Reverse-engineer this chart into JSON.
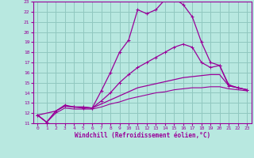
{
  "xlabel": "Windchill (Refroidissement éolien,°C)",
  "xlim": [
    -0.5,
    23.5
  ],
  "ylim": [
    11,
    23
  ],
  "ytick_min": 11,
  "ytick_max": 23,
  "xticks": [
    0,
    1,
    2,
    3,
    4,
    5,
    6,
    7,
    8,
    9,
    10,
    11,
    12,
    13,
    14,
    15,
    16,
    17,
    18,
    19,
    20,
    21,
    22,
    23
  ],
  "bg_color": "#b8e8e0",
  "grid_color": "#90c8c0",
  "line_color": "#990099",
  "line1_x": [
    0,
    1,
    2,
    3,
    4,
    5,
    6,
    7,
    8,
    9,
    10,
    11,
    12,
    13,
    14,
    15,
    16,
    17,
    18,
    19,
    20,
    21,
    22,
    23
  ],
  "line1_y": [
    11.8,
    11.1,
    12.2,
    12.7,
    12.6,
    12.5,
    12.5,
    14.2,
    16.0,
    18.0,
    19.2,
    22.2,
    21.8,
    22.2,
    23.2,
    23.3,
    22.7,
    21.5,
    19.0,
    17.0,
    16.7,
    14.8,
    14.5,
    14.3
  ],
  "line2_x": [
    0,
    2,
    3,
    4,
    5,
    6,
    7,
    8,
    9,
    10,
    11,
    12,
    13,
    14,
    15,
    16,
    17,
    18,
    19,
    20,
    21,
    22,
    23
  ],
  "line2_y": [
    11.8,
    12.2,
    12.8,
    12.6,
    12.6,
    12.5,
    13.2,
    14.0,
    15.0,
    15.8,
    16.5,
    17.0,
    17.5,
    18.0,
    18.5,
    18.8,
    18.5,
    17.0,
    16.5,
    16.7,
    14.7,
    14.5,
    14.3
  ],
  "line3_x": [
    0,
    1,
    2,
    3,
    4,
    5,
    6,
    7,
    8,
    9,
    10,
    11,
    12,
    13,
    14,
    15,
    16,
    17,
    18,
    19,
    20,
    21,
    22,
    23
  ],
  "line3_y": [
    11.8,
    11.1,
    12.2,
    12.7,
    12.6,
    12.6,
    12.5,
    12.9,
    13.3,
    13.7,
    14.1,
    14.5,
    14.7,
    14.9,
    15.1,
    15.3,
    15.5,
    15.6,
    15.7,
    15.8,
    15.8,
    14.7,
    14.5,
    14.3
  ],
  "line4_x": [
    0,
    1,
    2,
    3,
    4,
    5,
    6,
    7,
    8,
    9,
    10,
    11,
    12,
    13,
    14,
    15,
    16,
    17,
    18,
    19,
    20,
    21,
    22,
    23
  ],
  "line4_y": [
    11.8,
    11.1,
    12.0,
    12.5,
    12.4,
    12.4,
    12.4,
    12.6,
    12.9,
    13.1,
    13.4,
    13.6,
    13.8,
    14.0,
    14.1,
    14.3,
    14.4,
    14.5,
    14.5,
    14.6,
    14.6,
    14.4,
    14.3,
    14.2
  ]
}
